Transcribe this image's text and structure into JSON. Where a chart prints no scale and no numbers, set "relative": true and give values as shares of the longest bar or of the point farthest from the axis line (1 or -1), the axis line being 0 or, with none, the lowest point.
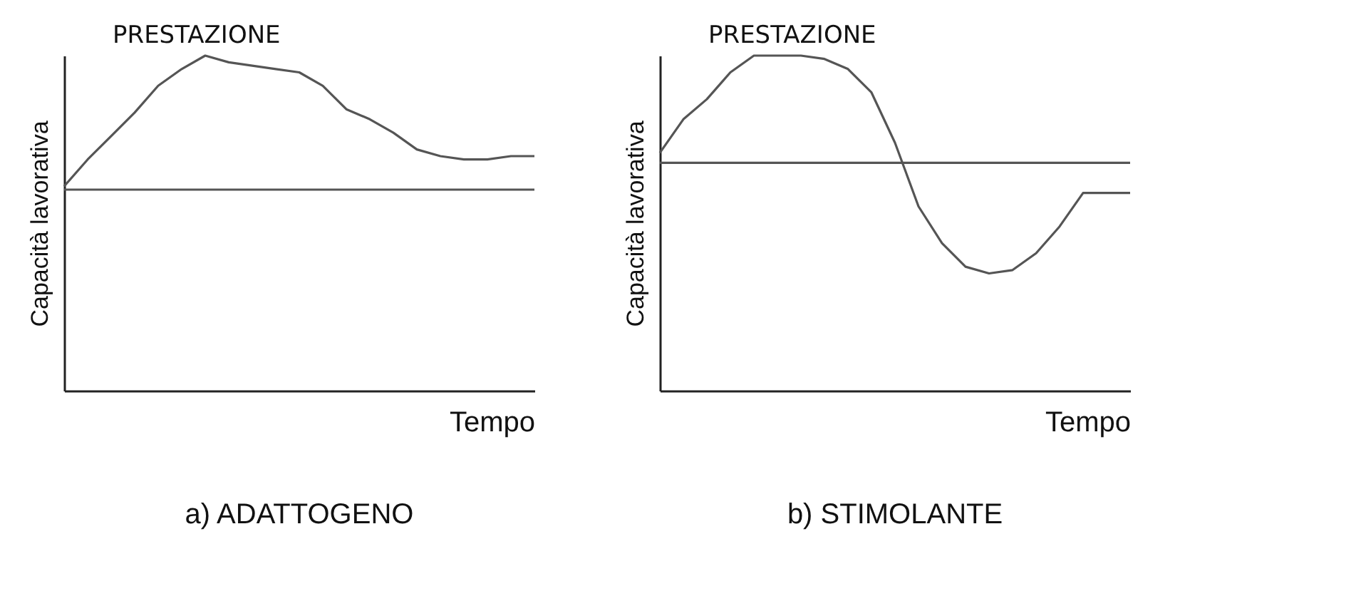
{
  "chart_data": [
    {
      "type": "line",
      "title": "PRESTAZIONE",
      "xlabel": "Tempo",
      "ylabel": "Capacità lavorativa",
      "relative": true,
      "grid": false,
      "marker": "none",
      "line_style": "solid",
      "categories": [
        null,
        null,
        null,
        null,
        null,
        null,
        null,
        null,
        null,
        null,
        null,
        null,
        null,
        null,
        null,
        null,
        null,
        null,
        null,
        null,
        null
      ],
      "series": [
        {
          "color": "#555555",
          "values": [
            0.61,
            0.69,
            0.76,
            0.83,
            0.91,
            0.96,
            1.0,
            0.98,
            0.97,
            0.96,
            0.95,
            0.91,
            0.84,
            0.81,
            0.77,
            0.72,
            0.7,
            0.69,
            0.69,
            0.7,
            0.7
          ]
        }
      ],
      "ref_lines": [
        {
          "axis": "y",
          "value": 0.6,
          "color": "#555555"
        }
      ],
      "annotations": [
        "a) ADATTOGENO"
      ]
    },
    {
      "type": "line",
      "title": "PRESTAZIONE",
      "xlabel": "Tempo",
      "ylabel": "Capacità lavorativa",
      "relative": true,
      "grid": false,
      "marker": "none",
      "line_style": "solid",
      "categories": [
        null,
        null,
        null,
        null,
        null,
        null,
        null,
        null,
        null,
        null,
        null,
        null,
        null,
        null,
        null,
        null,
        null,
        null,
        null,
        null,
        null
      ],
      "series": [
        {
          "color": "#555555",
          "values": [
            0.71,
            0.81,
            0.87,
            0.95,
            1.0,
            1.0,
            1.0,
            0.99,
            0.96,
            0.89,
            0.74,
            0.55,
            0.44,
            0.37,
            0.35,
            0.36,
            0.41,
            0.49,
            0.59,
            0.59,
            0.59
          ]
        }
      ],
      "ref_lines": [
        {
          "axis": "y",
          "value": 0.68,
          "color": "#555555"
        }
      ],
      "annotations": [
        "b) STIMOLANTE"
      ]
    }
  ]
}
